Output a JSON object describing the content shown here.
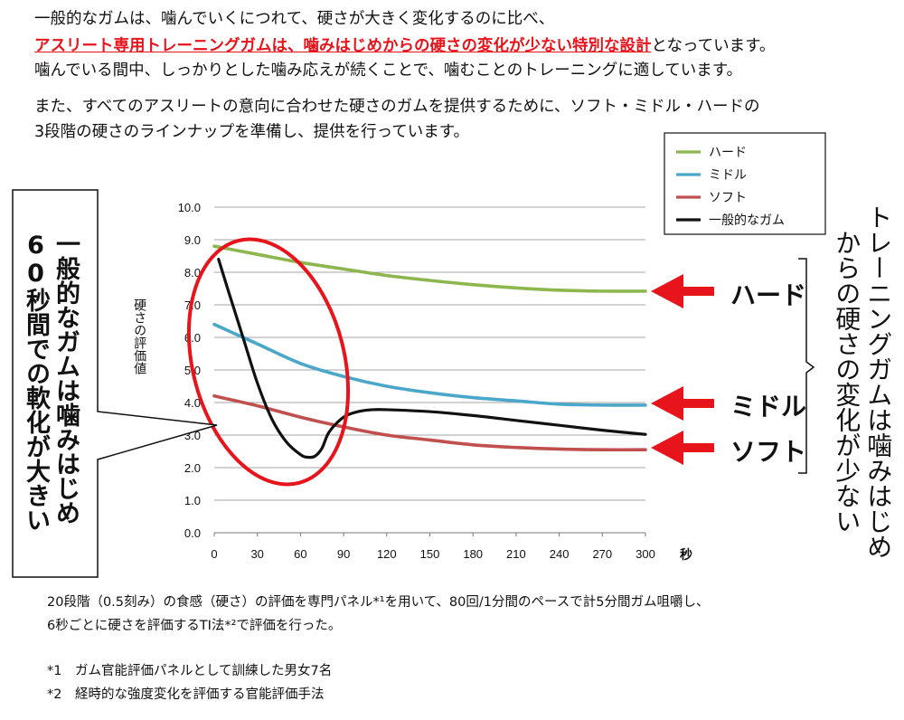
{
  "intro": {
    "line1": "一般的なガムは、噛んでいくにつれて、硬さが大きく変化するのに比べ、",
    "line2_highlight": "アスリート専用トレーニングガムは、噛みはじめからの硬さの変化が少ない特別な設計",
    "line2_rest": "となっています。",
    "line3": "噛んでいる間中、しっかりとした噛み応えが続くことで、噛むことのトレーニングに適しています。",
    "line4": "また、すべてのアスリートの意向に合わせた硬さのガムを提供するために、ソフト・ミドル・ハードの",
    "line5": "3段階の硬さのラインナップを準備し、提供を行っています。"
  },
  "left_callout": {
    "col1": "一般的なガムは噛みはじめ",
    "col2": "60秒間での軟化が大きい"
  },
  "right_callout": {
    "col1": "トレーニングガムは噛みはじめ",
    "col2": "からの硬さの変化が少ない"
  },
  "series_labels": {
    "hard": "ハード",
    "middle": "ミドル",
    "soft": "ソフト"
  },
  "chart_data": {
    "type": "line",
    "ylabel": "硬さの評価値",
    "xunit": "秒",
    "xlim": [
      0,
      300
    ],
    "ylim": [
      0,
      10
    ],
    "xticks": [
      "0",
      "30",
      "60",
      "90",
      "120",
      "150",
      "180",
      "210",
      "240",
      "270",
      "300"
    ],
    "yticks": [
      "0.0",
      "1.0",
      "2.0",
      "3.0",
      "4.0",
      "5.0",
      "6.0",
      "7.0",
      "8.0",
      "9.0",
      "10.0"
    ],
    "grid": true,
    "legend_position": "top-right",
    "series": [
      {
        "name": "ハード",
        "color": "#8db64f",
        "x": [
          0,
          30,
          60,
          90,
          120,
          150,
          180,
          210,
          240,
          270,
          300
        ],
        "y": [
          8.8,
          8.55,
          8.3,
          8.1,
          7.9,
          7.75,
          7.62,
          7.52,
          7.45,
          7.42,
          7.42
        ]
      },
      {
        "name": "ミドル",
        "color": "#4aa7c9",
        "x": [
          0,
          30,
          60,
          90,
          120,
          150,
          180,
          210,
          240,
          270,
          300
        ],
        "y": [
          6.4,
          5.8,
          5.2,
          4.8,
          4.5,
          4.3,
          4.15,
          4.05,
          3.95,
          3.92,
          3.92
        ]
      },
      {
        "name": "ソフト",
        "color": "#c0504d",
        "x": [
          0,
          30,
          60,
          90,
          120,
          150,
          180,
          210,
          240,
          270,
          300
        ],
        "y": [
          4.2,
          3.9,
          3.55,
          3.25,
          3.0,
          2.85,
          2.7,
          2.62,
          2.57,
          2.55,
          2.55
        ]
      },
      {
        "name": "一般的なガム",
        "color": "#111111",
        "x": [
          3,
          10,
          20,
          30,
          40,
          50,
          60,
          65,
          70,
          75,
          80,
          90,
          100,
          110,
          120,
          150,
          180,
          210,
          240,
          270,
          300
        ],
        "y": [
          8.4,
          7.4,
          6.0,
          4.6,
          3.5,
          2.8,
          2.4,
          2.32,
          2.35,
          2.6,
          3.1,
          3.55,
          3.72,
          3.78,
          3.78,
          3.72,
          3.6,
          3.45,
          3.3,
          3.15,
          3.02
        ]
      }
    ]
  },
  "footnote": {
    "main1": "20段階（0.5刻み）の食感（硬さ）の評価を専門パネル*¹を用いて、80回/1分間のペースで計5分間ガム咀嚼し、",
    "main2": "6秒ごとに硬さを評価するTI法*²で評価を行った。",
    "n1": "*1　ガム官能評価パネルとして訓練した男女7名",
    "n2": "*2　経時的な強度変化を評価する官能評価手法"
  },
  "colors": {
    "highlight": "#e8141c",
    "arrow": "#e8141c",
    "ellipse": "#e8141c"
  }
}
